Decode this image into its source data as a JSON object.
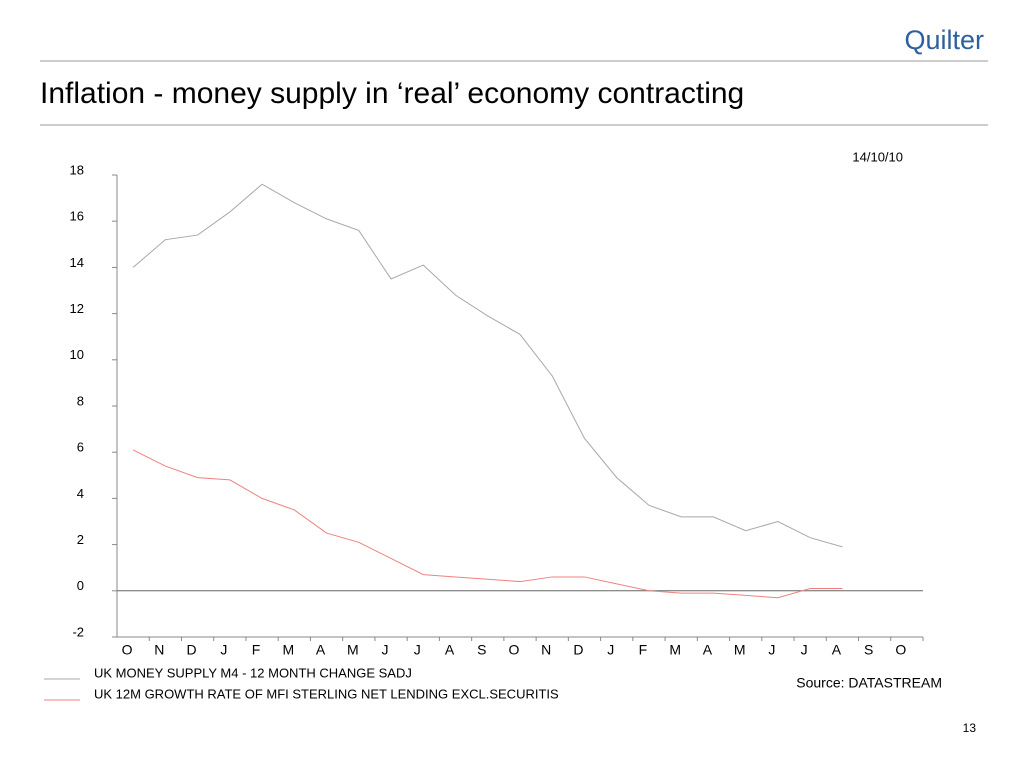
{
  "logo": "Quilter",
  "page_number": "13",
  "chart_data": {
    "type": "line",
    "title": "Inflation - money supply in ‘real’ economy contracting",
    "date": "14/10/10",
    "source": "Source: DATASTREAM",
    "categories": [
      "O",
      "N",
      "D",
      "J",
      "F",
      "M",
      "A",
      "M",
      "J",
      "J",
      "A",
      "S",
      "O",
      "N",
      "D",
      "J",
      "F",
      "M",
      "A",
      "M",
      "J",
      "J",
      "A",
      "S",
      "O"
    ],
    "series": [
      {
        "name": "UK MONEY SUPPLY M4 - 12 MONTH CHANGE SADJ",
        "color": "#a8a8a8",
        "values": [
          14.0,
          15.2,
          15.4,
          16.4,
          17.6,
          16.8,
          16.1,
          15.6,
          13.5,
          14.1,
          12.8,
          11.9,
          11.1,
          9.3,
          6.6,
          4.9,
          3.7,
          3.2,
          3.2,
          2.6,
          3.0,
          2.3,
          1.9,
          null,
          null
        ]
      },
      {
        "name": "UK 12M GROWTH RATE OF MFI STERLING NET LENDING EXCL.SECURITIS",
        "color": "#f08080",
        "values": [
          6.1,
          5.4,
          4.9,
          4.8,
          4.0,
          3.5,
          2.5,
          2.1,
          1.4,
          0.7,
          0.6,
          0.5,
          0.4,
          0.6,
          0.6,
          0.3,
          0.0,
          -0.1,
          -0.1,
          -0.2,
          -0.3,
          0.1,
          0.1,
          null,
          null
        ]
      }
    ],
    "ylim": [
      -2,
      18
    ],
    "yticks": [
      -2,
      0,
      2,
      4,
      6,
      8,
      10,
      12,
      14,
      16,
      18
    ]
  }
}
